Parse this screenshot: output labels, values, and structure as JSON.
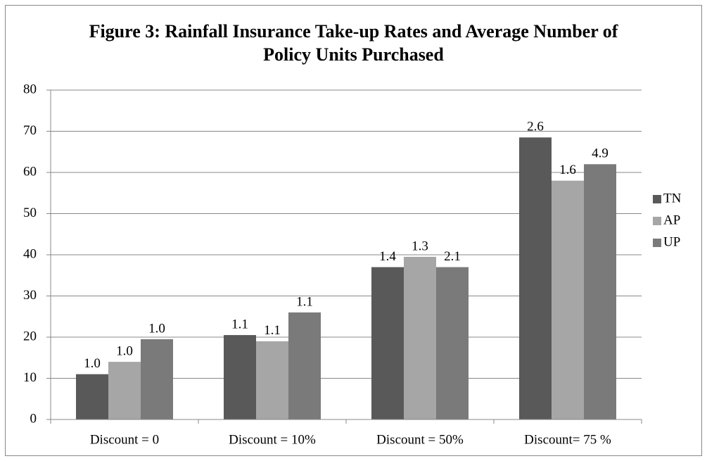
{
  "chart_data": {
    "type": "bar",
    "title": "Figure 3: Rainfall Insurance Take-up Rates and Average Number of Policy Units Purchased",
    "categories": [
      "Discount = 0",
      "Discount = 10%",
      "Discount = 50%",
      "Discount= 75 %"
    ],
    "series": [
      {
        "name": "TN",
        "color": "#595959",
        "values": [
          11,
          20.5,
          37,
          68.5
        ],
        "labels": [
          "1.0",
          "1.1",
          "1.4",
          "2.6"
        ]
      },
      {
        "name": "AP",
        "color": "#a6a6a6",
        "values": [
          14,
          19,
          39.5,
          58
        ],
        "labels": [
          "1.0",
          "1.1",
          "1.3",
          "1.6"
        ]
      },
      {
        "name": "UP",
        "color": "#7a7a7a",
        "values": [
          19.5,
          26,
          37,
          62
        ],
        "labels": [
          "1.0",
          "1.1",
          "2.1",
          "4.9"
        ]
      }
    ],
    "ylim": [
      0,
      80
    ],
    "yticks": [
      0,
      10,
      20,
      30,
      40,
      50,
      60,
      70,
      80
    ],
    "grid": true,
    "legend": "right"
  }
}
